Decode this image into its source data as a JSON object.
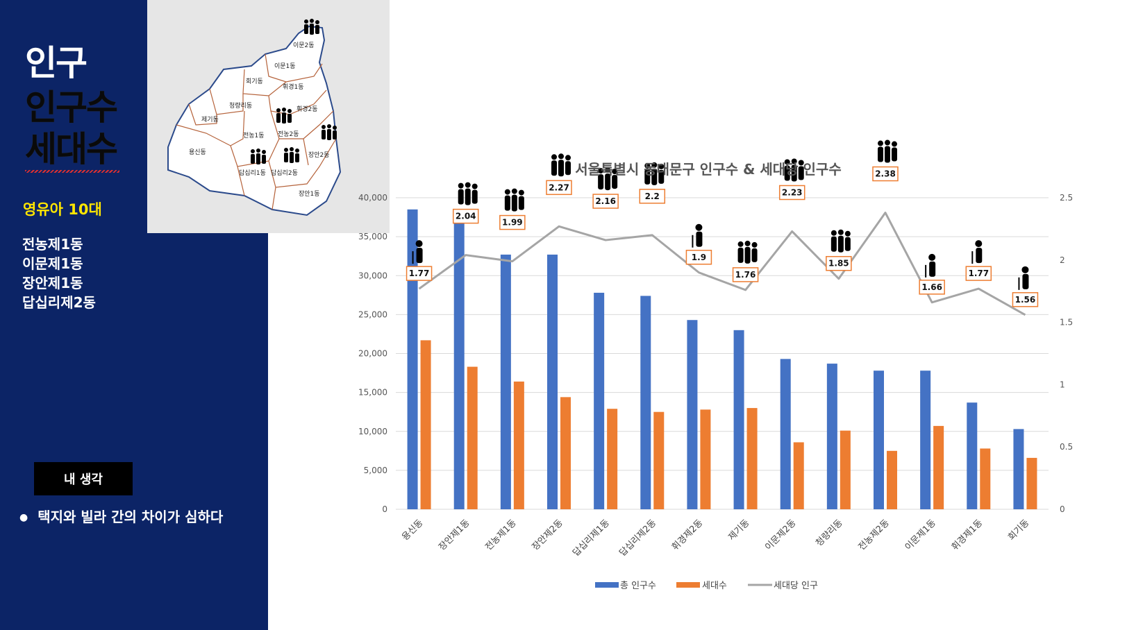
{
  "sidebar": {
    "title": "인구",
    "subtitle1": "인구수",
    "subtitle2": "세대수",
    "age_group": "영유아 10대",
    "districts": [
      "전농제1동",
      "이문제1동",
      "장안제1동",
      "답십리제2동"
    ],
    "thought_label": "내 생각",
    "bullet": "택지와 빌라 간의 차이가 심하다"
  },
  "map": {
    "labels": [
      "이문2동",
      "이문1동",
      "회기동",
      "휘경1동",
      "청량리동",
      "휘경2동",
      "제기동",
      "전농2동",
      "전농1동",
      "장안2동",
      "용신동",
      "답십리1동",
      "답십리2동",
      "장안1동"
    ]
  },
  "chart_data": {
    "type": "bar",
    "title": "서울특별시 동대문구 인구수 & 세대당 인구수",
    "categories": [
      "용신동",
      "장안제1동",
      "전농제1동",
      "장안제2동",
      "답십리제1동",
      "답십리제2동",
      "휘경제2동",
      "제기동",
      "이문제2동",
      "청량리동",
      "전농제2동",
      "이문제1동",
      "휘경제1동",
      "회기동"
    ],
    "series": [
      {
        "name": "총 인구수",
        "type": "bar",
        "axis": "left",
        "color": "#4472c4",
        "values": [
          38500,
          37500,
          32700,
          32700,
          27800,
          27400,
          24300,
          23000,
          19300,
          18700,
          17800,
          17800,
          13700,
          10300
        ]
      },
      {
        "name": "세대수",
        "type": "bar",
        "axis": "left",
        "color": "#ed7d31",
        "values": [
          21700,
          18300,
          16400,
          14400,
          12900,
          12500,
          12800,
          13000,
          8600,
          10100,
          7500,
          10700,
          7800,
          6600
        ]
      },
      {
        "name": "세대당 인구",
        "type": "line",
        "axis": "right",
        "color": "#a5a5a5",
        "values": [
          1.77,
          2.04,
          1.99,
          2.27,
          2.16,
          2.2,
          1.9,
          1.76,
          2.23,
          1.85,
          2.38,
          1.66,
          1.77,
          1.56
        ]
      }
    ],
    "ylim_left": [
      0,
      40000
    ],
    "yticks_left": [
      "0",
      "5,000",
      "10,000",
      "15,000",
      "20,000",
      "25,000",
      "30,000",
      "35,000",
      "40,000"
    ],
    "ylim_right": [
      0,
      2.5
    ],
    "yticks_right": [
      "0",
      "0.5",
      "1",
      "1.5",
      "2",
      "2.5"
    ],
    "data_labels": [
      "1.77",
      "2.04",
      "1.99",
      "2.27",
      "2.16",
      "2.2",
      "1.9",
      "1.76",
      "2.23",
      "1.85",
      "2.38",
      "1.66",
      "1.77",
      "1.56"
    ],
    "legend_position": "bottom",
    "grid": true
  }
}
